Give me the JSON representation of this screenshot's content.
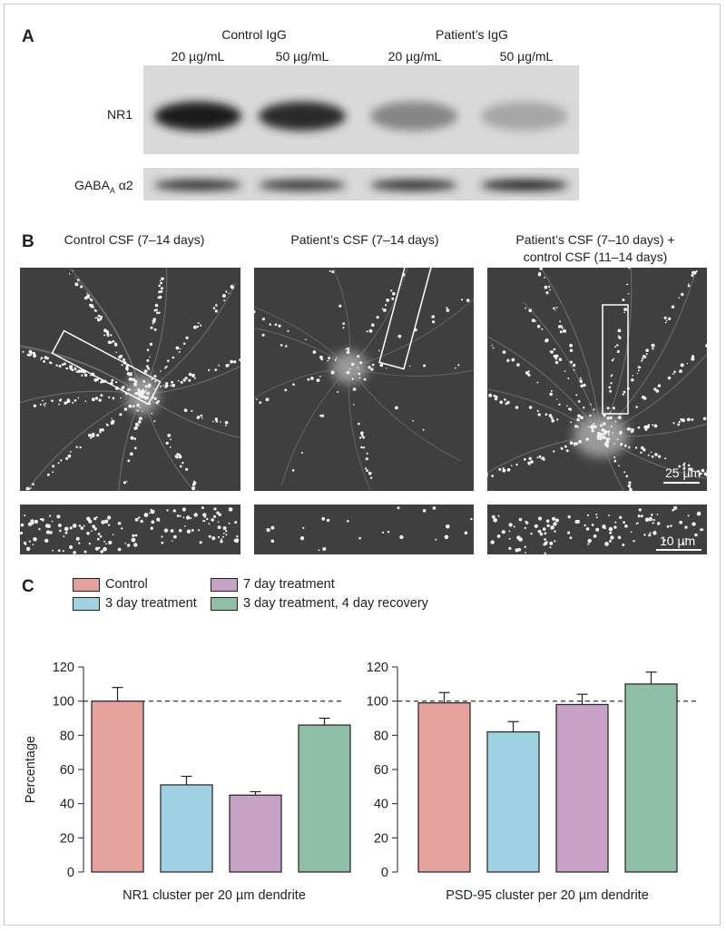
{
  "panel_a": {
    "letter": "A",
    "group_headers": [
      "Control IgG",
      "Patient’s IgG"
    ],
    "lane_labels": [
      "20 µg/mL",
      "50 µg/mL",
      "20 µg/mL",
      "50 µg/mL"
    ],
    "rows": [
      {
        "label": "NR1",
        "band_intensity": [
          0.95,
          0.88,
          0.42,
          0.25
        ]
      },
      {
        "label_main": "GABA",
        "label_sub": "A",
        "label_tail": " α2",
        "band_intensity": [
          0.85,
          0.82,
          0.84,
          0.92
        ]
      }
    ]
  },
  "panel_b": {
    "letter": "B",
    "column_titles": [
      [
        "Control CSF (7–14 days)"
      ],
      [
        "Patient’s CSF (7–14 days)"
      ],
      [
        "Patient’s CSF (7–10 days) +",
        "control CSF (11–14 days)"
      ]
    ],
    "scale_large": "25 µm",
    "scale_small": "10 µm"
  },
  "panel_c": {
    "letter": "C",
    "legend": [
      {
        "label": "Control",
        "color": "#e5a29c"
      },
      {
        "label": "3 day treatment",
        "color": "#9fd3e3"
      },
      {
        "label": "7 day treatment",
        "color": "#c7a1c8"
      },
      {
        "label": "3 day treatment, 4 day recovery",
        "color": "#8fbfa6"
      }
    ]
  },
  "chart_data": {
    "type": "bar",
    "ylabel": "Percentage",
    "ylim": [
      0,
      120
    ],
    "yticks": [
      0,
      20,
      40,
      60,
      80,
      100,
      120
    ],
    "reference_line": 100,
    "series_colors": [
      "#e5a29c",
      "#9fd3e3",
      "#c7a1c8",
      "#8fbfa6"
    ],
    "groups": [
      {
        "xlabel": "NR1 cluster per 20 µm dendrite",
        "values": [
          100,
          51,
          45,
          86
        ],
        "errors": [
          8,
          5,
          2,
          4
        ]
      },
      {
        "xlabel": "PSD-95 cluster per 20 µm dendrite",
        "values": [
          99,
          82,
          98,
          110
        ],
        "errors": [
          6,
          6,
          6,
          7
        ]
      }
    ]
  }
}
